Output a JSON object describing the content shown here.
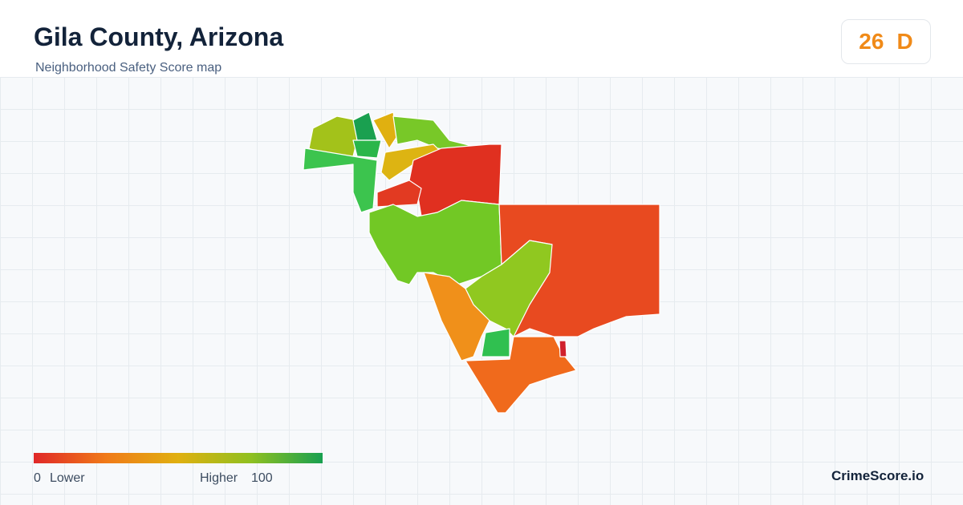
{
  "header": {
    "title": "Gila County, Arizona",
    "subtitle": "Neighborhood Safety Score map"
  },
  "score": {
    "value": 26,
    "grade": "D"
  },
  "legend": {
    "min": 0,
    "min_label": "Lower",
    "max_label": "Higher",
    "max": 100
  },
  "brand": "CrimeScore.io"
}
